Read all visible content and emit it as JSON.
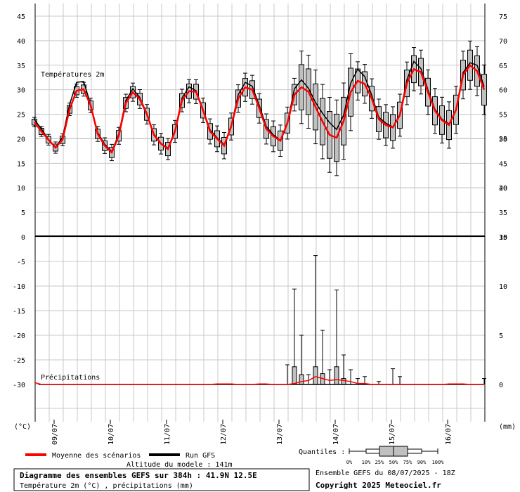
{
  "chart_data": {
    "type": "line",
    "title": "Diagramme des ensembles GEFS sur 384h : 41.9N 12.5E",
    "subtitle": "Température 2m (°C) , précipitations (mm)",
    "altitude": "Altitude du modele : 141m",
    "run_info": "Ensemble GEFS du 08/07/2025 - 18Z",
    "copyright": "Copyright 2025 Meteociel.fr",
    "temp_panel_label": "Températures 2m",
    "precip_panel_label": "Précipitations",
    "left_unit": "(°C)",
    "right_unit": "(mm)",
    "left_axis_ticks": [
      "45",
      "40",
      "35",
      "30",
      "25",
      "20",
      "15",
      "10",
      "5",
      "0",
      "-5",
      "-10",
      "-15",
      "-20",
      "-25",
      "-30"
    ],
    "right_axis_ticks_temp": [
      "75",
      "70",
      "65",
      "60",
      "55",
      "50",
      "45",
      "40",
      "35",
      "30"
    ],
    "right_axis_ticks_precip": [
      "25",
      "20",
      "15",
      "10",
      "5",
      "0"
    ],
    "x_labels": [
      "09/07",
      "10/07",
      "11/07",
      "12/07",
      "13/07",
      "14/07",
      "15/07",
      "16/07"
    ],
    "ylim_temp": [
      0,
      45
    ],
    "ylim_precip": [
      -30,
      0
    ],
    "legend": {
      "mean": "Moyenne des scénarios",
      "run": "Run GFS",
      "quantiles_label": "Quantiles :",
      "quantile_ticks": [
        "0%",
        "10%",
        "25%",
        "50%",
        "75%",
        "90%",
        "100%"
      ]
    },
    "series_mean_temp": [
      23.4,
      21.5,
      19.8,
      18.2,
      19.8,
      26,
      29.8,
      30.1,
      26.8,
      21,
      18.6,
      17.2,
      20.6,
      27.3,
      29.5,
      28.1,
      25,
      20.8,
      19,
      17.9,
      21.5,
      27.8,
      29.7,
      29.6,
      25.8,
      21.5,
      20,
      18.6,
      22.5,
      28.2,
      30.5,
      30,
      26.2,
      22,
      20.5,
      19.6,
      23.2,
      29,
      30.5,
      29.6,
      26.5,
      23.5,
      20.8,
      20.2,
      23.6,
      29.5,
      31.8,
      31.2,
      28.2,
      24,
      22.8,
      22.3,
      24.8,
      31.3,
      34.2,
      33.6,
      29.5,
      25.7,
      23.8,
      22.8,
      25.9,
      33,
      35,
      33.8,
      30
    ],
    "series_run_temp": [
      23.9,
      22,
      19.9,
      18.3,
      20.3,
      27,
      31.5,
      31.7,
      27,
      21.3,
      18.9,
      17.4,
      21,
      27.8,
      30.2,
      28.4,
      25.2,
      21,
      19.1,
      18.1,
      21.7,
      28.3,
      30.6,
      29.8,
      26,
      21.8,
      20.2,
      18.8,
      22.7,
      29,
      31.5,
      30.7,
      26.8,
      22.5,
      20.8,
      19.7,
      23.3,
      30.2,
      32,
      30.3,
      27.4,
      25.2,
      23.3,
      21.9,
      24.8,
      31.3,
      34.2,
      32.7,
      28.9,
      24.4,
      23.2,
      22.4,
      25,
      32,
      35.8,
      34.3,
      30,
      26,
      24,
      23,
      26,
      33.5,
      35.5,
      35,
      30.6
    ],
    "precip_mean_mm": [
      0.2,
      0,
      0,
      0,
      0,
      0,
      0,
      0,
      0,
      0,
      0,
      0,
      0,
      0,
      0,
      0,
      0,
      0,
      0,
      0,
      0,
      0,
      0,
      0,
      0,
      0,
      0.05,
      0.05,
      0.05,
      0,
      0,
      0,
      0.05,
      0.05,
      0,
      0,
      0,
      0.1,
      0.3,
      0.4,
      0.8,
      0.6,
      0.4,
      0.5,
      0.4,
      0.3,
      0.1,
      0.1,
      0,
      0,
      0,
      0,
      0,
      0,
      0,
      0,
      0,
      0,
      0,
      0.05,
      0.05,
      0.05,
      0,
      0,
      0
    ],
    "precip_max_mm": [
      0,
      0,
      0,
      0,
      0,
      0,
      0,
      0,
      0,
      0,
      0,
      0,
      0,
      0,
      0,
      0,
      0,
      0,
      0,
      0,
      0,
      0,
      0,
      0,
      0,
      0,
      0,
      0,
      0,
      0,
      0,
      0,
      0,
      0,
      0,
      0,
      2,
      9.7,
      5,
      1,
      13.1,
      5.5,
      1.5,
      9.6,
      3,
      1.5,
      0.6,
      0.8,
      0,
      0.3,
      0,
      1.6,
      0.8,
      0,
      0,
      0,
      0,
      0,
      0,
      0,
      0,
      0,
      0,
      0,
      0.6
    ]
  }
}
